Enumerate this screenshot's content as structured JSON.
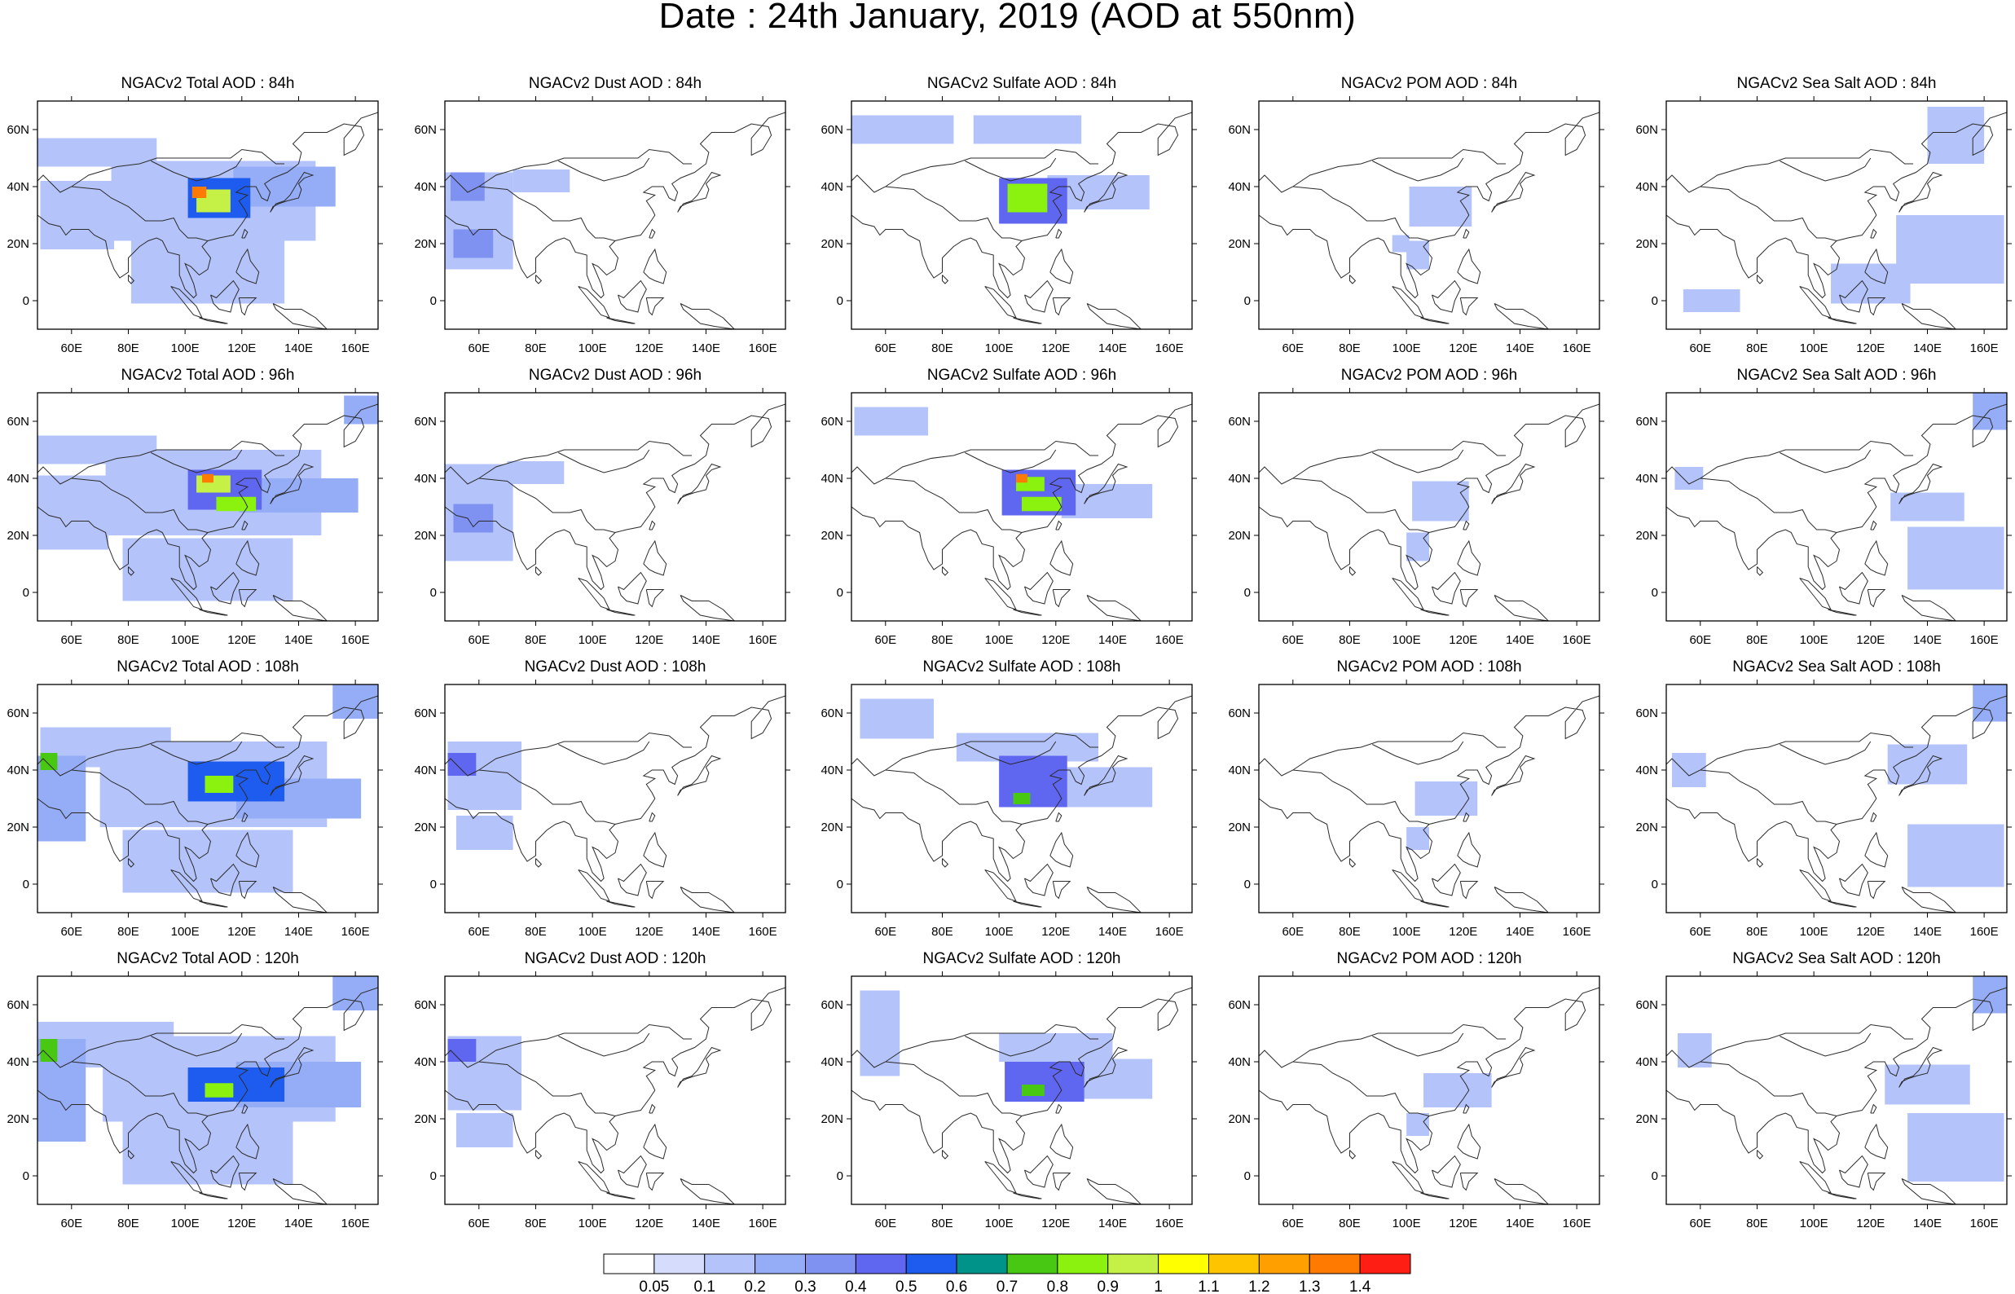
{
  "figure": {
    "title": "Date : 24th January, 2019 (AOD at 550nm)"
  },
  "colors": {
    "palette": [
      "#ffffff",
      "#d6ddfc",
      "#b4c4fb",
      "#95acf7",
      "#7f92f1",
      "#5f66ef",
      "#1e5cf0",
      "#00938a",
      "#48c812",
      "#8af20e",
      "#c5f046",
      "#ffff00",
      "#ffc400",
      "#ffa000",
      "#ff7a00",
      "#ff1e14"
    ],
    "coastline": "#2b2b2b",
    "frame": "#000000"
  },
  "map": {
    "type": "filled-contour map",
    "projection": "cylindrical equidistant",
    "lon_range": [
      48,
      168
    ],
    "lat_range": [
      -10,
      70
    ],
    "lon_ticks": [
      "60E",
      "80E",
      "100E",
      "120E",
      "140E",
      "160E"
    ],
    "lat_ticks": [
      "60N",
      "40N",
      "20N",
      "0"
    ]
  },
  "chart_data": {
    "type": "heatmap",
    "variable": "AOD at 550nm",
    "rows_forecast_hours": [
      "84h",
      "96h",
      "108h",
      "120h"
    ],
    "columns_species": [
      "Total",
      "Dust",
      "Sulfate",
      "POM",
      "Sea Salt"
    ],
    "colorbar": {
      "levels": [
        "0.05",
        "0.1",
        "0.2",
        "0.3",
        "0.4",
        "0.5",
        "0.6",
        "0.7",
        "0.8",
        "0.9",
        "1",
        "1.1",
        "1.2",
        "1.3",
        "1.4"
      ],
      "colors": [
        "#ffffff",
        "#d6ddfc",
        "#b4c4fb",
        "#95acf7",
        "#7f92f1",
        "#5f66ef",
        "#1e5cf0",
        "#00938a",
        "#48c812",
        "#8af20e",
        "#c5f046",
        "#ffff00",
        "#ffc400",
        "#ffa000",
        "#ff7a00",
        "#ff1e14"
      ]
    }
  },
  "panels": [
    {
      "title": "NGACv2 Total AOD : 84h",
      "species": "total",
      "hour": 84,
      "fields": [
        {
          "lon": 68,
          "lat": 52,
          "w": 44,
          "h": 10,
          "v": 0.15
        },
        {
          "lon": 110,
          "lat": 35,
          "w": 72,
          "h": 28,
          "v": 0.12
        },
        {
          "lon": 62,
          "lat": 30,
          "w": 26,
          "h": 24,
          "v": 0.15
        },
        {
          "lon": 135,
          "lat": 40,
          "w": 36,
          "h": 14,
          "v": 0.2
        },
        {
          "lon": 108,
          "lat": 10,
          "w": 54,
          "h": 22,
          "v": 0.1
        },
        {
          "lon": 112,
          "lat": 36,
          "w": 22,
          "h": 14,
          "v": 0.5
        },
        {
          "lon": 110,
          "lat": 35,
          "w": 12,
          "h": 8,
          "v": 0.9
        },
        {
          "lon": 105,
          "lat": 38,
          "w": 5,
          "h": 4,
          "v": 1.35
        }
      ]
    },
    {
      "title": "NGACv2 Dust AOD : 84h",
      "species": "dust",
      "hour": 84,
      "fields": [
        {
          "lon": 60,
          "lat": 28,
          "w": 24,
          "h": 34,
          "v": 0.15
        },
        {
          "lon": 56,
          "lat": 40,
          "w": 12,
          "h": 10,
          "v": 0.35
        },
        {
          "lon": 58,
          "lat": 20,
          "w": 14,
          "h": 10,
          "v": 0.3
        },
        {
          "lon": 82,
          "lat": 42,
          "w": 20,
          "h": 8,
          "v": 0.1
        }
      ]
    },
    {
      "title": "NGACv2 Sulfate AOD : 84h",
      "species": "sulfate",
      "hour": 84,
      "fields": [
        {
          "lon": 66,
          "lat": 60,
          "w": 36,
          "h": 10,
          "v": 0.1
        },
        {
          "lon": 110,
          "lat": 60,
          "w": 38,
          "h": 10,
          "v": 0.12
        },
        {
          "lon": 135,
          "lat": 38,
          "w": 36,
          "h": 12,
          "v": 0.15
        },
        {
          "lon": 112,
          "lat": 35,
          "w": 24,
          "h": 16,
          "v": 0.45
        },
        {
          "lon": 110,
          "lat": 36,
          "w": 14,
          "h": 10,
          "v": 0.85
        }
      ]
    },
    {
      "title": "NGACv2 POM AOD : 84h",
      "species": "pom",
      "hour": 84,
      "fields": [
        {
          "lon": 112,
          "lat": 33,
          "w": 22,
          "h": 14,
          "v": 0.1
        },
        {
          "lon": 104,
          "lat": 16,
          "w": 8,
          "h": 10,
          "v": 0.12
        },
        {
          "lon": 98,
          "lat": 20,
          "w": 6,
          "h": 6,
          "v": 0.1
        }
      ]
    },
    {
      "title": "NGACv2 Sea Salt AOD : 84h",
      "species": "seasalt",
      "hour": 84,
      "fields": [
        {
          "lon": 150,
          "lat": 58,
          "w": 20,
          "h": 20,
          "v": 0.1
        },
        {
          "lon": 148,
          "lat": 18,
          "w": 38,
          "h": 24,
          "v": 0.12
        },
        {
          "lon": 120,
          "lat": 6,
          "w": 28,
          "h": 14,
          "v": 0.1
        },
        {
          "lon": 64,
          "lat": 0,
          "w": 20,
          "h": 8,
          "v": 0.1
        }
      ]
    },
    {
      "title": "NGACv2 Total AOD : 96h",
      "species": "total",
      "hour": 96,
      "fields": [
        {
          "lon": 68,
          "lat": 50,
          "w": 44,
          "h": 10,
          "v": 0.15
        },
        {
          "lon": 110,
          "lat": 35,
          "w": 76,
          "h": 30,
          "v": 0.12
        },
        {
          "lon": 60,
          "lat": 28,
          "w": 26,
          "h": 26,
          "v": 0.15
        },
        {
          "lon": 140,
          "lat": 34,
          "w": 42,
          "h": 12,
          "v": 0.2
        },
        {
          "lon": 108,
          "lat": 8,
          "w": 60,
          "h": 22,
          "v": 0.1
        },
        {
          "lon": 162,
          "lat": 64,
          "w": 12,
          "h": 10,
          "v": 0.2
        },
        {
          "lon": 114,
          "lat": 36,
          "w": 26,
          "h": 14,
          "v": 0.45
        },
        {
          "lon": 110,
          "lat": 38,
          "w": 12,
          "h": 6,
          "v": 0.9
        },
        {
          "lon": 118,
          "lat": 31,
          "w": 14,
          "h": 5,
          "v": 0.85
        },
        {
          "lon": 108,
          "lat": 40,
          "w": 4,
          "h": 3,
          "v": 1.35
        }
      ]
    },
    {
      "title": "NGACv2 Dust AOD : 96h",
      "species": "dust",
      "hour": 96,
      "fields": [
        {
          "lon": 60,
          "lat": 28,
          "w": 24,
          "h": 34,
          "v": 0.15
        },
        {
          "lon": 58,
          "lat": 26,
          "w": 14,
          "h": 10,
          "v": 0.3
        },
        {
          "lon": 80,
          "lat": 42,
          "w": 20,
          "h": 8,
          "v": 0.1
        }
      ]
    },
    {
      "title": "NGACv2 Sulfate AOD : 96h",
      "species": "sulfate",
      "hour": 96,
      "fields": [
        {
          "lon": 62,
          "lat": 60,
          "w": 26,
          "h": 10,
          "v": 0.1
        },
        {
          "lon": 138,
          "lat": 32,
          "w": 32,
          "h": 12,
          "v": 0.15
        },
        {
          "lon": 114,
          "lat": 35,
          "w": 26,
          "h": 16,
          "v": 0.45
        },
        {
          "lon": 111,
          "lat": 38,
          "w": 10,
          "h": 5,
          "v": 0.85
        },
        {
          "lon": 115,
          "lat": 31,
          "w": 14,
          "h": 5,
          "v": 0.8
        },
        {
          "lon": 108,
          "lat": 40,
          "w": 4,
          "h": 3,
          "v": 1.3
        }
      ]
    },
    {
      "title": "NGACv2 POM AOD : 96h",
      "species": "pom",
      "hour": 96,
      "fields": [
        {
          "lon": 112,
          "lat": 32,
          "w": 20,
          "h": 14,
          "v": 0.1
        },
        {
          "lon": 104,
          "lat": 16,
          "w": 8,
          "h": 10,
          "v": 0.12
        }
      ]
    },
    {
      "title": "NGACv2 Sea Salt AOD : 96h",
      "species": "seasalt",
      "hour": 96,
      "fields": [
        {
          "lon": 162,
          "lat": 64,
          "w": 12,
          "h": 14,
          "v": 0.2
        },
        {
          "lon": 150,
          "lat": 12,
          "w": 34,
          "h": 22,
          "v": 0.12
        },
        {
          "lon": 140,
          "lat": 30,
          "w": 26,
          "h": 10,
          "v": 0.1
        },
        {
          "lon": 56,
          "lat": 40,
          "w": 10,
          "h": 8,
          "v": 0.15
        }
      ]
    },
    {
      "title": "NGACv2 Total AOD : 108h",
      "species": "total",
      "hour": 108,
      "fields": [
        {
          "lon": 72,
          "lat": 48,
          "w": 46,
          "h": 14,
          "v": 0.15
        },
        {
          "lon": 110,
          "lat": 35,
          "w": 80,
          "h": 30,
          "v": 0.12
        },
        {
          "lon": 56,
          "lat": 30,
          "w": 18,
          "h": 30,
          "v": 0.2
        },
        {
          "lon": 140,
          "lat": 30,
          "w": 44,
          "h": 14,
          "v": 0.2
        },
        {
          "lon": 108,
          "lat": 8,
          "w": 60,
          "h": 22,
          "v": 0.1
        },
        {
          "lon": 160,
          "lat": 64,
          "w": 16,
          "h": 12,
          "v": 0.2
        },
        {
          "lon": 118,
          "lat": 36,
          "w": 34,
          "h": 14,
          "v": 0.5
        },
        {
          "lon": 52,
          "lat": 43,
          "w": 6,
          "h": 6,
          "v": 0.7
        },
        {
          "lon": 112,
          "lat": 35,
          "w": 10,
          "h": 6,
          "v": 0.8
        }
      ]
    },
    {
      "title": "NGACv2 Dust AOD : 108h",
      "species": "dust",
      "hour": 108,
      "fields": [
        {
          "lon": 62,
          "lat": 38,
          "w": 26,
          "h": 24,
          "v": 0.15
        },
        {
          "lon": 54,
          "lat": 42,
          "w": 10,
          "h": 8,
          "v": 0.4
        },
        {
          "lon": 62,
          "lat": 18,
          "w": 20,
          "h": 12,
          "v": 0.15
        }
      ]
    },
    {
      "title": "NGACv2 Sulfate AOD : 108h",
      "species": "sulfate",
      "hour": 108,
      "fields": [
        {
          "lon": 64,
          "lat": 58,
          "w": 26,
          "h": 14,
          "v": 0.15
        },
        {
          "lon": 110,
          "lat": 48,
          "w": 50,
          "h": 10,
          "v": 0.12
        },
        {
          "lon": 138,
          "lat": 34,
          "w": 32,
          "h": 14,
          "v": 0.15
        },
        {
          "lon": 112,
          "lat": 36,
          "w": 24,
          "h": 18,
          "v": 0.45
        },
        {
          "lon": 108,
          "lat": 30,
          "w": 6,
          "h": 4,
          "v": 0.7
        }
      ]
    },
    {
      "title": "NGACv2 POM AOD : 108h",
      "species": "pom",
      "hour": 108,
      "fields": [
        {
          "lon": 114,
          "lat": 30,
          "w": 22,
          "h": 12,
          "v": 0.1
        },
        {
          "lon": 104,
          "lat": 16,
          "w": 8,
          "h": 8,
          "v": 0.12
        }
      ]
    },
    {
      "title": "NGACv2 Sea Salt AOD : 108h",
      "species": "seasalt",
      "hour": 108,
      "fields": [
        {
          "lon": 162,
          "lat": 64,
          "w": 12,
          "h": 14,
          "v": 0.25
        },
        {
          "lon": 150,
          "lat": 10,
          "w": 34,
          "h": 22,
          "v": 0.12
        },
        {
          "lon": 140,
          "lat": 42,
          "w": 28,
          "h": 14,
          "v": 0.1
        },
        {
          "lon": 56,
          "lat": 40,
          "w": 12,
          "h": 12,
          "v": 0.15
        }
      ]
    },
    {
      "title": "NGACv2 Total AOD : 120h",
      "species": "total",
      "hour": 120,
      "fields": [
        {
          "lon": 72,
          "lat": 46,
          "w": 48,
          "h": 16,
          "v": 0.15
        },
        {
          "lon": 112,
          "lat": 34,
          "w": 82,
          "h": 30,
          "v": 0.12
        },
        {
          "lon": 56,
          "lat": 30,
          "w": 18,
          "h": 36,
          "v": 0.2
        },
        {
          "lon": 140,
          "lat": 32,
          "w": 44,
          "h": 16,
          "v": 0.2
        },
        {
          "lon": 108,
          "lat": 8,
          "w": 60,
          "h": 22,
          "v": 0.1
        },
        {
          "lon": 160,
          "lat": 64,
          "w": 16,
          "h": 12,
          "v": 0.2
        },
        {
          "lon": 118,
          "lat": 32,
          "w": 34,
          "h": 12,
          "v": 0.5
        },
        {
          "lon": 52,
          "lat": 44,
          "w": 6,
          "h": 8,
          "v": 0.7
        },
        {
          "lon": 112,
          "lat": 30,
          "w": 10,
          "h": 5,
          "v": 0.8
        }
      ]
    },
    {
      "title": "NGACv2 Dust AOD : 120h",
      "species": "dust",
      "hour": 120,
      "fields": [
        {
          "lon": 62,
          "lat": 36,
          "w": 26,
          "h": 26,
          "v": 0.15
        },
        {
          "lon": 54,
          "lat": 44,
          "w": 10,
          "h": 8,
          "v": 0.4
        },
        {
          "lon": 62,
          "lat": 16,
          "w": 20,
          "h": 12,
          "v": 0.15
        }
      ]
    },
    {
      "title": "NGACv2 Sulfate AOD : 120h",
      "species": "sulfate",
      "hour": 120,
      "fields": [
        {
          "lon": 58,
          "lat": 50,
          "w": 14,
          "h": 30,
          "v": 0.15
        },
        {
          "lon": 120,
          "lat": 45,
          "w": 40,
          "h": 10,
          "v": 0.12
        },
        {
          "lon": 138,
          "lat": 34,
          "w": 32,
          "h": 14,
          "v": 0.15
        },
        {
          "lon": 116,
          "lat": 33,
          "w": 28,
          "h": 14,
          "v": 0.45
        },
        {
          "lon": 112,
          "lat": 30,
          "w": 8,
          "h": 4,
          "v": 0.7
        }
      ]
    },
    {
      "title": "NGACv2 POM AOD : 120h",
      "species": "pom",
      "hour": 120,
      "fields": [
        {
          "lon": 118,
          "lat": 30,
          "w": 24,
          "h": 12,
          "v": 0.1
        },
        {
          "lon": 104,
          "lat": 18,
          "w": 8,
          "h": 8,
          "v": 0.12
        }
      ]
    },
    {
      "title": "NGACv2 Sea Salt  AOD : 120h",
      "species": "seasalt",
      "hour": 120,
      "fields": [
        {
          "lon": 162,
          "lat": 64,
          "w": 12,
          "h": 14,
          "v": 0.25
        },
        {
          "lon": 150,
          "lat": 10,
          "w": 34,
          "h": 24,
          "v": 0.12
        },
        {
          "lon": 140,
          "lat": 32,
          "w": 30,
          "h": 14,
          "v": 0.1
        },
        {
          "lon": 58,
          "lat": 44,
          "w": 12,
          "h": 12,
          "v": 0.15
        }
      ]
    }
  ]
}
